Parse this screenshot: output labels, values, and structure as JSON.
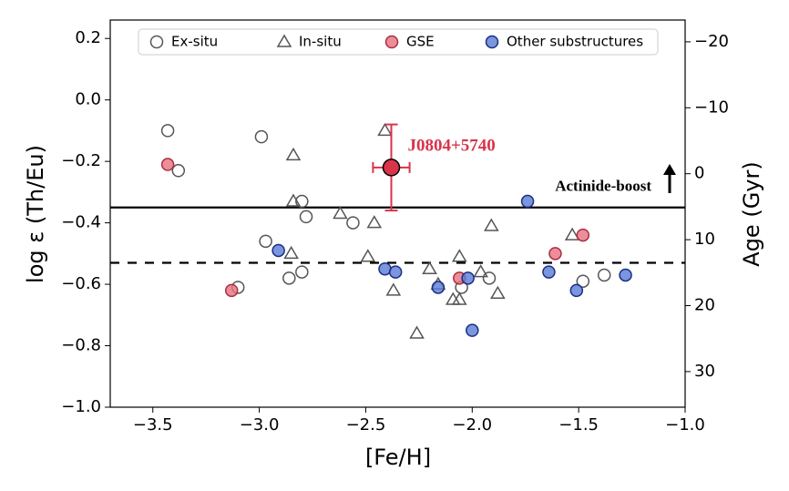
{
  "chart_data": {
    "type": "scatter",
    "xlabel": "[Fe/H]",
    "ylabel": "log ε (Th/Eu)",
    "y2label": "Age (Gyr)",
    "xlim": [
      -3.7,
      -1.0
    ],
    "ylim": [
      -1.0,
      0.26
    ],
    "y2lim": [
      35.4,
      -23.3
    ],
    "xticks": [
      {
        "value": -3.5,
        "label": "−3.5"
      },
      {
        "value": -3.0,
        "label": "−3.0"
      },
      {
        "value": -2.5,
        "label": "−2.5"
      },
      {
        "value": -2.0,
        "label": "−2.0"
      },
      {
        "value": -1.5,
        "label": "−1.5"
      },
      {
        "value": -1.0,
        "label": "−1.0"
      }
    ],
    "yticks": [
      {
        "value": -1.0,
        "label": "−1.0"
      },
      {
        "value": -0.8,
        "label": "−0.8"
      },
      {
        "value": -0.6,
        "label": "−0.6"
      },
      {
        "value": -0.4,
        "label": "−0.4"
      },
      {
        "value": -0.2,
        "label": "−0.2"
      },
      {
        "value": 0.0,
        "label": "0.0"
      },
      0.2
    ],
    "y2ticks": [
      {
        "value": -20,
        "label": "−20"
      },
      {
        "value": -10,
        "label": "−10"
      },
      0,
      10,
      20,
      30
    ],
    "legend": "upper center",
    "series": [
      {
        "name": "Ex-situ",
        "marker": "circle",
        "color": "none",
        "edgecolor": "#555555",
        "x": [
          -3.43,
          -3.38,
          -2.99,
          -2.8,
          -2.78,
          -2.56,
          -2.97,
          -2.86,
          -2.8,
          -3.1,
          -2.05,
          -1.92,
          -1.48,
          -1.38
        ],
        "values": [
          -0.1,
          -0.23,
          -0.12,
          -0.33,
          -0.38,
          -0.4,
          -0.46,
          -0.58,
          -0.56,
          -0.61,
          -0.61,
          -0.58,
          -0.59,
          -0.57
        ]
      },
      {
        "name": "In-situ",
        "marker": "triangle",
        "color": "none",
        "edgecolor": "#555555",
        "x": [
          -2.41,
          -2.84,
          -2.84,
          -2.62,
          -2.46,
          -1.91,
          -2.49,
          -2.85,
          -2.06,
          -2.2,
          -1.96,
          -2.37,
          -2.16,
          -2.09,
          -2.06,
          -1.88,
          -2.26,
          -1.53
        ],
        "values": [
          -0.1,
          -0.18,
          -0.33,
          -0.37,
          -0.4,
          -0.41,
          -0.51,
          -0.5,
          -0.51,
          -0.55,
          -0.56,
          -0.62,
          -0.6,
          -0.65,
          -0.65,
          -0.63,
          -0.76,
          -0.44
        ]
      },
      {
        "name": "GSE",
        "marker": "circle",
        "color": "#e8707f",
        "edgecolor": "#a83040",
        "x": [
          -3.43,
          -3.13,
          -2.06,
          -1.61,
          -1.48
        ],
        "values": [
          -0.21,
          -0.62,
          -0.58,
          -0.5,
          -0.44
        ]
      },
      {
        "name": "Other substructures",
        "marker": "circle",
        "color": "#5a7bd6",
        "edgecolor": "#1a2f80",
        "x": [
          -2.91,
          -2.41,
          -2.36,
          -2.16,
          -2.02,
          -2.0,
          -1.74,
          -1.64,
          -1.51,
          -1.28
        ],
        "values": [
          -0.49,
          -0.55,
          -0.56,
          -0.61,
          -0.58,
          -0.75,
          -0.33,
          -0.56,
          -0.62,
          -0.57
        ]
      }
    ],
    "highlight": {
      "label": "J0804+5740",
      "x": -2.38,
      "y": -0.22,
      "xerr": 0.086,
      "yerr": 0.14,
      "color": "#d9344a"
    },
    "hlines": [
      {
        "value": -0.35,
        "style": "solid",
        "label": "Actinide-boost"
      },
      {
        "value": -0.53,
        "style": "dashed"
      }
    ]
  }
}
